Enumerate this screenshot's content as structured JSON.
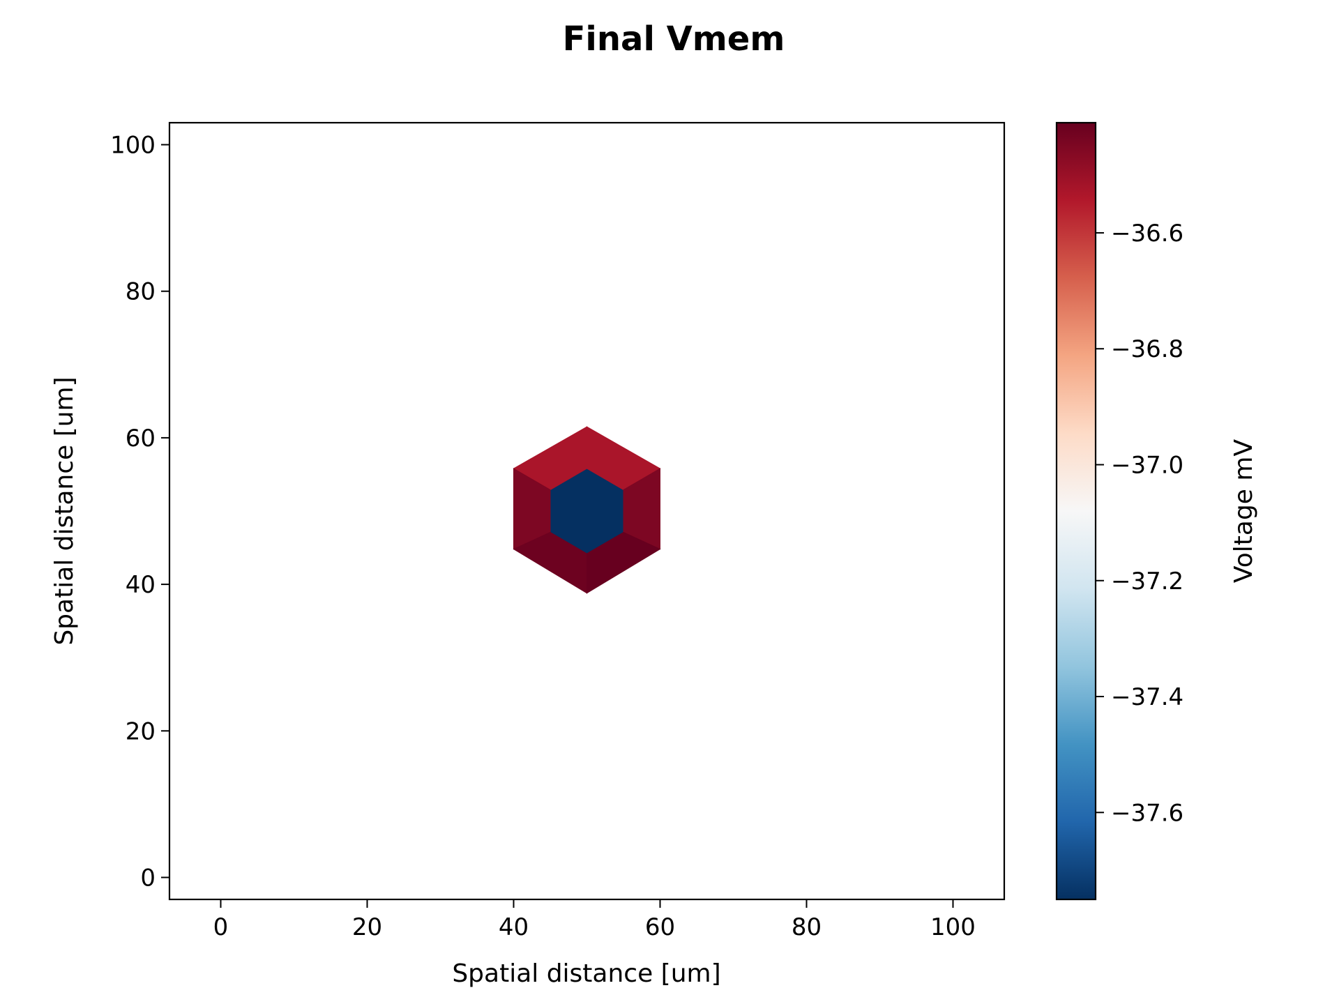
{
  "chart_data": {
    "type": "heatmap",
    "title": "Final Vmem",
    "xlabel": "Spatial distance [um]",
    "ylabel": "Spatial distance [um]",
    "xlim": [
      -7,
      107
    ],
    "ylim": [
      -3,
      103
    ],
    "xticks": [
      0,
      20,
      40,
      60,
      80,
      100
    ],
    "yticks": [
      0,
      20,
      40,
      60,
      80,
      100
    ],
    "xtick_labels": [
      "0",
      "20",
      "40",
      "60",
      "80",
      "100"
    ],
    "ytick_labels": [
      "0",
      "20",
      "40",
      "60",
      "80",
      "100"
    ],
    "grid": false,
    "colormap": "RdBu_r",
    "colorbar": {
      "label": "Voltage mV",
      "range": [
        -37.75,
        -36.41
      ],
      "ticks": [
        -36.6,
        -36.8,
        -37.0,
        -37.2,
        -37.4,
        -37.6
      ],
      "tick_labels": [
        "−36.6",
        "−36.8",
        "−37.0",
        "−37.2",
        "−37.4",
        "−37.6"
      ],
      "colors": [
        "#053061",
        "#2166ac",
        "#4393c3",
        "#92c5de",
        "#d1e5f0",
        "#f7f7f7",
        "#fddbc7",
        "#f4a582",
        "#d6604d",
        "#b2182b",
        "#67001f"
      ]
    },
    "cells": [
      {
        "name": "center",
        "vmem": -37.75,
        "polygon": [
          [
            50,
            55.8
          ],
          [
            55,
            52.9
          ],
          [
            55,
            47.1
          ],
          [
            50,
            44.2
          ],
          [
            45,
            47.1
          ],
          [
            45,
            52.9
          ]
        ]
      },
      {
        "name": "top-left",
        "vmem": -36.53,
        "polygon": [
          [
            50,
            61.5
          ],
          [
            50,
            55.8
          ],
          [
            45,
            52.9
          ],
          [
            40,
            55.8
          ]
        ]
      },
      {
        "name": "top-right",
        "vmem": -36.53,
        "polygon": [
          [
            50,
            61.5
          ],
          [
            60,
            55.8
          ],
          [
            55,
            52.9
          ],
          [
            50,
            55.8
          ]
        ]
      },
      {
        "name": "left",
        "vmem": -36.45,
        "polygon": [
          [
            40,
            55.8
          ],
          [
            45,
            52.9
          ],
          [
            45,
            47.1
          ],
          [
            40,
            44.8
          ]
        ]
      },
      {
        "name": "right",
        "vmem": -36.45,
        "polygon": [
          [
            60,
            55.8
          ],
          [
            60,
            44.8
          ],
          [
            55,
            47.1
          ],
          [
            55,
            52.9
          ]
        ]
      },
      {
        "name": "bottom-left",
        "vmem": -36.42,
        "polygon": [
          [
            40,
            44.8
          ],
          [
            45,
            47.1
          ],
          [
            50,
            44.2
          ],
          [
            50,
            38.8
          ]
        ]
      },
      {
        "name": "bottom-right",
        "vmem": -36.41,
        "polygon": [
          [
            50,
            38.8
          ],
          [
            50,
            44.2
          ],
          [
            55,
            47.1
          ],
          [
            60,
            44.8
          ]
        ]
      }
    ]
  }
}
